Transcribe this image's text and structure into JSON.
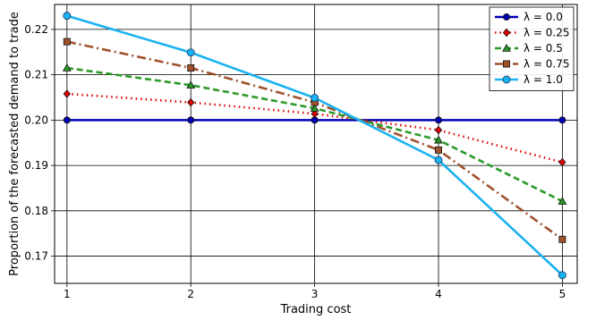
{
  "chart_data": {
    "type": "line",
    "title": "",
    "xlabel": "Trading cost",
    "ylabel": "Proportion of the forecasted demand to trade",
    "x": [
      1,
      2,
      3,
      4,
      5
    ],
    "xlim": [
      0.9,
      5.12
    ],
    "ylim": [
      0.164,
      0.2255
    ],
    "xticks": [
      1,
      2,
      3,
      4,
      5
    ],
    "yticks": [
      0.17,
      0.18,
      0.19,
      0.2,
      0.21,
      0.22
    ],
    "ytick_labels": [
      "0.17",
      "0.18",
      "0.19",
      "0.20",
      "0.21",
      "0.22"
    ],
    "grid": true,
    "legend_position": "top-right",
    "series": [
      {
        "name": "λ = 0.0",
        "values": [
          0.2,
          0.2,
          0.2,
          0.2,
          0.2
        ],
        "color": "#0000b3",
        "dash": "solid",
        "marker": "circle"
      },
      {
        "name": "λ = 0.25",
        "values": [
          0.2058,
          0.2039,
          0.2014,
          0.1978,
          0.1907
        ],
        "color": "#e00000",
        "dash": "dotted",
        "marker": "diamond"
      },
      {
        "name": "λ = 0.5",
        "values": [
          0.2115,
          0.2077,
          0.2026,
          0.1956,
          0.1821
        ],
        "color": "#2a9a2a",
        "dash": "dashed",
        "marker": "triangle"
      },
      {
        "name": "λ = 0.75",
        "values": [
          0.2173,
          0.2115,
          0.2039,
          0.1934,
          0.1737
        ],
        "color": "#a0522d",
        "dash": "dashdot",
        "marker": "square"
      },
      {
        "name": "λ = 1.0",
        "values": [
          0.223,
          0.2149,
          0.2049,
          0.1912,
          0.1658
        ],
        "color": "#1ab2f0",
        "dash": "solid",
        "marker": "hex"
      }
    ]
  }
}
